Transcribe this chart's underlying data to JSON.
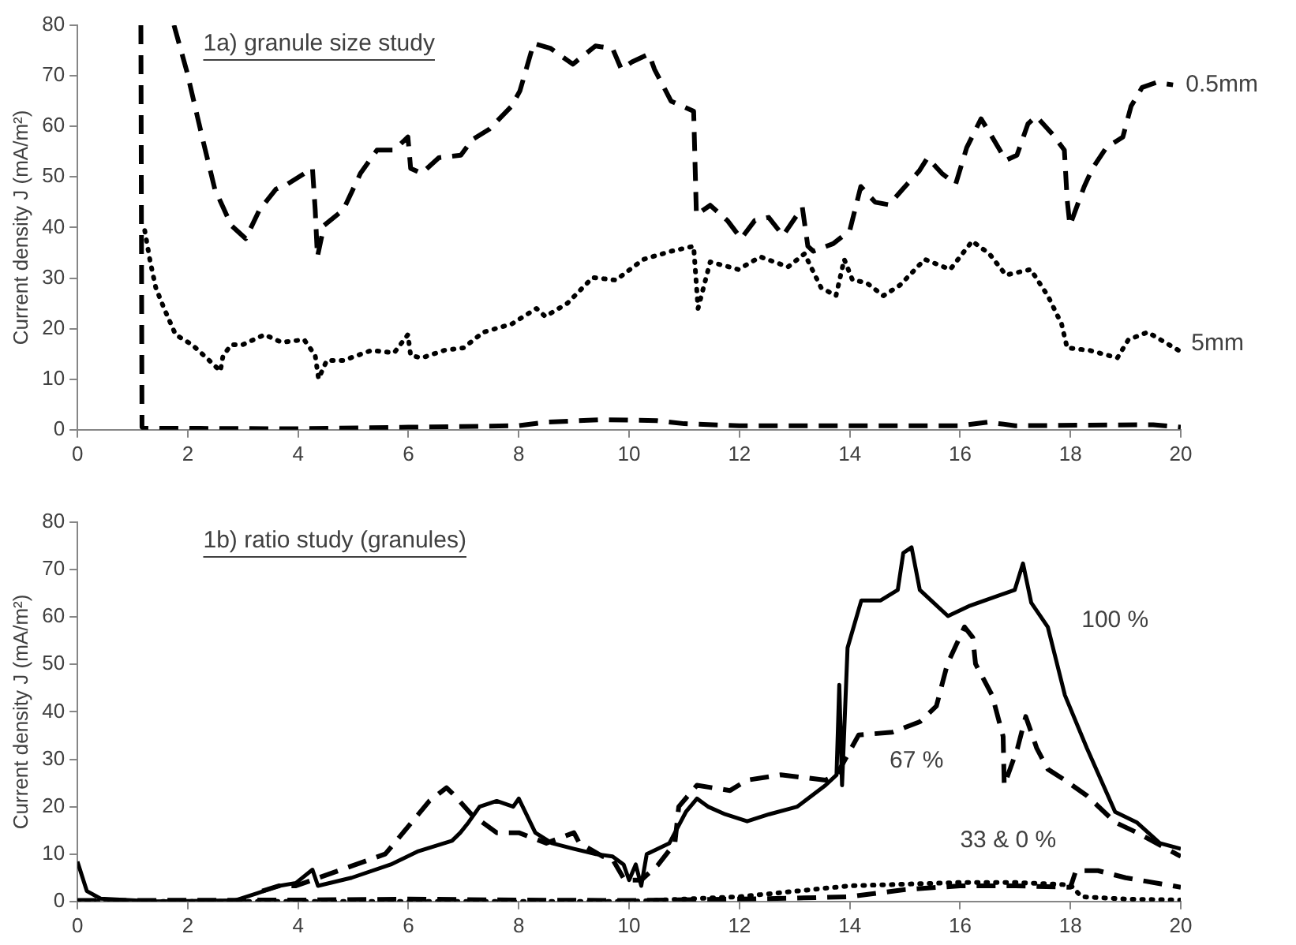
{
  "chart_data": [
    {
      "type": "line",
      "title": "1a) granule size study",
      "ylabel": "Current density J (mA/m²)",
      "xlim": [
        0,
        20
      ],
      "xticks": [
        0,
        2,
        4,
        6,
        8,
        10,
        12,
        14,
        16,
        18,
        20
      ],
      "ylim": [
        0,
        80
      ],
      "yticks": [
        0,
        10,
        20,
        30,
        40,
        50,
        60,
        70,
        80
      ],
      "grid": false,
      "legend": false,
      "marker": "none",
      "series": [
        {
          "color": "#000000",
          "line_style": "dashed",
          "x": [
            1.75,
            1.98,
            2.28,
            2.49,
            2.79,
            3.05,
            3.3,
            3.6,
            3.81,
            4.26,
            4.31,
            4.35,
            4.47,
            4.82,
            5.13,
            5.43,
            5.74,
            5.99,
            6.04,
            6.24,
            6.55,
            6.95,
            7.16,
            7.46,
            7.87,
            8.02,
            8.27,
            8.58,
            8.98,
            9.39,
            9.7,
            9.86,
            10.06,
            10.36,
            10.46,
            10.76,
            11.17,
            11.22,
            11.47,
            11.78,
            12.03,
            12.28,
            12.53,
            12.79,
            13.14,
            13.24,
            13.34,
            13.7,
            14.0,
            14.2,
            14.46,
            14.71,
            14.96,
            15.26,
            15.41,
            15.67,
            15.92,
            16.12,
            16.38,
            16.58,
            16.83,
            17.03,
            17.23,
            17.38,
            17.68,
            17.89,
            17.94,
            17.99,
            18.25,
            18.4,
            18.65,
            18.95,
            19.1,
            19.3,
            19.56,
            19.86
          ],
          "values": [
            80,
            71,
            57,
            47.6,
            40.4,
            37.8,
            43.5,
            47.6,
            48.6,
            51.7,
            43.5,
            34.2,
            40.4,
            43.5,
            50.7,
            55.3,
            55.3,
            57.9,
            51.7,
            50.7,
            53.8,
            54.3,
            57.4,
            59.4,
            64,
            67,
            76.4,
            75.4,
            72.3,
            75.9,
            75.4,
            71.3,
            72.8,
            74.3,
            71.3,
            65,
            63,
            42.5,
            44.4,
            41.4,
            37.8,
            41.4,
            42,
            38.4,
            44,
            36.3,
            35.3,
            36.8,
            39.4,
            48.1,
            45,
            44.5,
            47.6,
            51.2,
            53.8,
            50.7,
            48.6,
            55.8,
            61.5,
            57.9,
            53.3,
            54.3,
            60.5,
            62,
            58.4,
            55.3,
            45.6,
            40.4,
            48.1,
            51.7,
            55.8,
            57.9,
            64,
            67.7,
            68.7,
            68.2
          ]
        },
        {
          "color": "#000000",
          "line_style": "dotted",
          "x": [
            1.22,
            1.32,
            1.42,
            1.57,
            1.78,
            2.08,
            2.39,
            2.59,
            2.64,
            2.79,
            2.99,
            3.39,
            3.7,
            4.11,
            4.31,
            4.37,
            4.52,
            4.82,
            5.33,
            5.74,
            5.99,
            6.04,
            6.24,
            6.65,
            7.0,
            7.36,
            7.87,
            8.32,
            8.48,
            8.88,
            9.34,
            9.76,
            10.26,
            10.76,
            11.17,
            11.25,
            11.47,
            11.98,
            12.38,
            12.88,
            13.18,
            13.48,
            13.75,
            13.9,
            14.05,
            14.3,
            14.61,
            14.91,
            15.36,
            15.82,
            16.22,
            16.53,
            16.83,
            17.28,
            17.59,
            17.84,
            17.94,
            18.35,
            18.85,
            19.05,
            19.4,
            19.96
          ],
          "values": [
            39.4,
            33.2,
            28.1,
            24,
            18.8,
            16.8,
            13.7,
            11.6,
            14.7,
            16.8,
            16.8,
            18.8,
            17.3,
            17.8,
            14.7,
            10.1,
            13.7,
            13.7,
            15.7,
            15.2,
            18.8,
            14.7,
            14.2,
            15.7,
            16.2,
            19.3,
            20.9,
            24,
            22.4,
            25,
            30.1,
            29.6,
            33.7,
            35.3,
            36.3,
            24,
            33.2,
            31.7,
            34.2,
            32.2,
            34.8,
            28.1,
            26.5,
            33.7,
            29.6,
            29.1,
            26.5,
            28.6,
            33.7,
            31.7,
            37.3,
            34.8,
            30.6,
            31.7,
            26.5,
            20.9,
            16.2,
            15.7,
            14.2,
            17.8,
            19.3,
            15.7
          ]
        },
        {
          "color": "#000000",
          "line_style": "dashed",
          "x": [
            1.15,
            1.17,
            1.2,
            4,
            6,
            8,
            8.5,
            9.5,
            10.5,
            11,
            12,
            16,
            16.5,
            17,
            19.5,
            20
          ],
          "values": [
            80,
            0.5,
            0.3,
            0.2,
            0.5,
            0.8,
            1.5,
            2,
            1.8,
            1.2,
            0.8,
            0.8,
            1.5,
            0.8,
            1,
            0.5
          ]
        }
      ],
      "annotations": [
        {
          "text": "0.5mm",
          "x": 19.86,
          "y": 68.2
        },
        {
          "text": "5mm",
          "x": 19.96,
          "y": 17
        }
      ]
    },
    {
      "type": "line",
      "title": "1b) ratio study (granules)",
      "ylabel": "Current density J (mA/m²)",
      "xlim": [
        0,
        20
      ],
      "xticks": [
        0,
        2,
        4,
        6,
        8,
        10,
        12,
        14,
        16,
        18,
        20
      ],
      "ylim": [
        0,
        80
      ],
      "yticks": [
        0,
        10,
        20,
        30,
        40,
        50,
        60,
        70,
        80
      ],
      "grid": false,
      "legend": false,
      "marker": "none",
      "series": [
        {
          "color": "#000000",
          "line_style": "solid",
          "x": [
            0,
            0.17,
            0.42,
            1.4,
            2.85,
            3.25,
            3.66,
            3.96,
            4.26,
            4.36,
            4.97,
            5.68,
            6.18,
            6.79,
            6.94,
            7.09,
            7.29,
            7.6,
            7.9,
            8.0,
            8.3,
            8.6,
            9.0,
            9.4,
            9.7,
            9.9,
            10.0,
            10.12,
            10.22,
            10.32,
            10.73,
            11.03,
            11.23,
            11.43,
            11.74,
            12.14,
            12.54,
            13.05,
            13.56,
            13.76,
            13.81,
            13.86,
            13.96,
            14.21,
            14.56,
            14.87,
            14.97,
            15.12,
            15.27,
            15.78,
            16.18,
            16.99,
            17.14,
            17.29,
            17.59,
            17.9,
            18.3,
            18.81,
            19.2,
            19.62,
            20.0
          ],
          "values": [
            8.4,
            2.2,
            0.6,
            0,
            0.2,
            1.7,
            3.3,
            3.9,
            6.7,
            3.3,
            5,
            7.8,
            10.6,
            12.8,
            14.5,
            16.7,
            20,
            21.2,
            20,
            21.7,
            14.5,
            12.3,
            11.1,
            10,
            9.5,
            7.8,
            4.5,
            7.8,
            3.3,
            10,
            12.3,
            18.9,
            21.7,
            20,
            18.4,
            16.9,
            18.4,
            20,
            24.5,
            26.7,
            45.7,
            24.5,
            53.5,
            63.5,
            63.5,
            65.7,
            73.5,
            74.7,
            65.7,
            60.2,
            62.4,
            65.7,
            71.3,
            63,
            57.9,
            43.5,
            32.3,
            18.9,
            16.7,
            12.3,
            11.1
          ]
        },
        {
          "color": "#000000",
          "line_style": "dashed",
          "x": [
            3.35,
            3.66,
            3.96,
            5.58,
            5.98,
            6.38,
            6.69,
            6.84,
            7.14,
            7.6,
            8.0,
            8.5,
            9.0,
            9.1,
            9.52,
            9.7,
            9.92,
            10.22,
            10.53,
            10.83,
            10.9,
            11.23,
            11.83,
            12.14,
            12.75,
            13.56,
            13.76,
            14.16,
            14.77,
            15.27,
            15.57,
            15.77,
            16.08,
            16.23,
            16.28,
            16.58,
            16.78,
            16.8,
            17.04,
            17.19,
            17.39,
            17.59,
            17.9,
            18.3,
            18.81,
            19.21,
            20.0
          ],
          "values": [
            2.2,
            3.3,
            3.3,
            10,
            15.6,
            21.2,
            24,
            22.3,
            18.4,
            14.5,
            14.5,
            12.3,
            14.5,
            12.3,
            9.5,
            8.9,
            4.5,
            4.5,
            7.8,
            12.3,
            20,
            24.5,
            23.4,
            25.6,
            26.7,
            25.6,
            26.7,
            35.1,
            35.7,
            37.9,
            41.2,
            50.1,
            57.9,
            55.7,
            50.1,
            43.5,
            34.8,
            24.5,
            32.3,
            39,
            32.3,
            27.9,
            25.6,
            22.3,
            16.7,
            14.5,
            9.5
          ]
        },
        {
          "color": "#000000",
          "line_style": "dashed",
          "x": [
            0,
            4,
            6,
            8,
            10,
            12,
            13,
            14,
            15,
            16,
            17,
            18,
            18.1,
            18.5,
            19,
            20
          ],
          "values": [
            0.2,
            0.3,
            0.5,
            0.3,
            0.2,
            0.5,
            0.7,
            1,
            2.5,
            3.3,
            3.3,
            3,
            6.5,
            6.5,
            5,
            3
          ]
        },
        {
          "color": "#000000",
          "line_style": "dotted",
          "x": [
            0,
            10,
            12,
            14,
            16,
            17,
            18,
            18.2,
            19,
            20
          ],
          "values": [
            0,
            0,
            1,
            3.3,
            4,
            4,
            3.5,
            1,
            0.5,
            0.3
          ]
        }
      ],
      "annotations": [
        "100 %",
        "67 %",
        "33 & 0 %"
      ]
    }
  ]
}
